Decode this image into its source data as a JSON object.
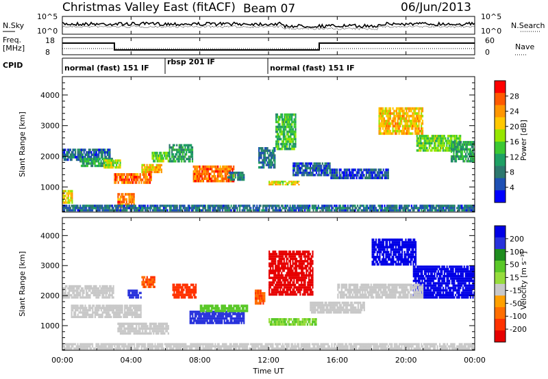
{
  "header": {
    "title_left": "Christmas Valley East (fitACF)",
    "title_mid": "Beam 07",
    "title_right": "06/Jun/2013"
  },
  "panels": {
    "nsky": {
      "label": "N.Sky",
      "ticks": [
        "10^5",
        "10^0"
      ]
    },
    "nsearch": {
      "label": "N.Search",
      "ticks": [
        "10^5",
        "10^0"
      ]
    },
    "freq": {
      "label_line1": "Freq.",
      "label_line2": "[MHz]",
      "ticks": [
        "18",
        "8"
      ]
    },
    "nave": {
      "label": "Nave",
      "ticks": [
        "60",
        "0"
      ]
    },
    "cpid": {
      "label": "CPID",
      "segments": [
        {
          "text": "normal (fast) 151 IF",
          "start_hour": 0,
          "end_hour": 6
        },
        {
          "text": "rbsp 201 IF",
          "start_hour": 6,
          "end_hour": 12
        },
        {
          "text": "normal (fast) 151 IF",
          "start_hour": 12,
          "end_hour": 24
        }
      ]
    }
  },
  "xaxis": {
    "label": "Time UT",
    "ticks": [
      "00:00",
      "04:00",
      "08:00",
      "12:00",
      "16:00",
      "20:00",
      "00:00"
    ]
  },
  "power_colorbar": {
    "label": "Power [dB]",
    "ticks": [
      "28",
      "24",
      "20",
      "16",
      "12",
      "8",
      "4"
    ],
    "colors": [
      "#ff0000",
      "#ff5a00",
      "#ff9600",
      "#ffc800",
      "#96e600",
      "#3cc832",
      "#1ea064",
      "#2d786e",
      "#1e50b4",
      "#0000ff"
    ]
  },
  "velocity_colorbar": {
    "label": "Velocity [m s⁻¹]",
    "ticks": [
      "200",
      "100",
      "50",
      "15",
      "-15",
      "-50",
      "-100",
      "-200"
    ],
    "colors": [
      "#0000e6",
      "#2832dc",
      "#1e8c1e",
      "#5ac828",
      "#96dc3c",
      "#c8c8c8",
      "#ffa000",
      "#ff6e00",
      "#ff3200",
      "#e60000"
    ]
  },
  "chart_data": [
    {
      "type": "heatmap",
      "name": "power",
      "ylabel": "Slant Range [km]",
      "xlabel": "",
      "xlim": [
        0,
        24
      ],
      "ylim": [
        180,
        4600
      ],
      "yticks": [
        1000,
        2000,
        3000,
        4000
      ],
      "regions": [
        {
          "t0": 0.0,
          "t1": 2.8,
          "r0": 1850,
          "r1": 2250,
          "v": 8
        },
        {
          "t0": 1.0,
          "t1": 3.0,
          "r0": 1650,
          "r1": 1950,
          "v": 12
        },
        {
          "t0": 2.4,
          "t1": 3.4,
          "r0": 1600,
          "r1": 1900,
          "v": 18
        },
        {
          "t0": 3.0,
          "t1": 5.2,
          "r0": 1100,
          "r1": 1450,
          "v": 26
        },
        {
          "t0": 4.6,
          "t1": 5.8,
          "r0": 1450,
          "r1": 1750,
          "v": 22
        },
        {
          "t0": 5.2,
          "t1": 6.2,
          "r0": 1800,
          "r1": 2150,
          "v": 16
        },
        {
          "t0": 3.2,
          "t1": 4.2,
          "r0": 300,
          "r1": 800,
          "v": 25
        },
        {
          "t0": 0.0,
          "t1": 0.6,
          "r0": 450,
          "r1": 900,
          "v": 20
        },
        {
          "t0": 6.2,
          "t1": 7.6,
          "r0": 1800,
          "r1": 2400,
          "v": 12
        },
        {
          "t0": 7.6,
          "t1": 10.0,
          "r0": 1150,
          "r1": 1700,
          "v": 26
        },
        {
          "t0": 9.6,
          "t1": 10.6,
          "r0": 1200,
          "r1": 1500,
          "v": 10
        },
        {
          "t0": 11.4,
          "t1": 12.4,
          "r0": 1600,
          "r1": 2300,
          "v": 9
        },
        {
          "t0": 12.0,
          "t1": 13.8,
          "r0": 1050,
          "r1": 1200,
          "v": 20
        },
        {
          "t0": 12.4,
          "t1": 13.6,
          "r0": 2200,
          "r1": 3400,
          "v": 14
        },
        {
          "t0": 13.4,
          "t1": 15.6,
          "r0": 1350,
          "r1": 1800,
          "v": 7
        },
        {
          "t0": 15.6,
          "t1": 19.0,
          "r0": 1250,
          "r1": 1600,
          "v": 6
        },
        {
          "t0": 18.4,
          "t1": 21.0,
          "r0": 2700,
          "r1": 3600,
          "v": 22
        },
        {
          "t0": 20.6,
          "t1": 23.2,
          "r0": 2150,
          "r1": 2700,
          "v": 16
        },
        {
          "t0": 22.6,
          "t1": 24.0,
          "r0": 1800,
          "r1": 2500,
          "v": 12
        },
        {
          "t0": 0.0,
          "t1": 24.0,
          "r0": 200,
          "r1": 420,
          "v": 8
        }
      ]
    },
    {
      "type": "heatmap",
      "name": "velocity",
      "ylabel": "Slant Range [km]",
      "xlabel": "Time UT",
      "xlim": [
        0,
        24
      ],
      "ylim": [
        180,
        4600
      ],
      "yticks": [
        1000,
        2000,
        3000,
        4000
      ],
      "regions": [
        {
          "t0": 0.0,
          "t1": 3.0,
          "r0": 1900,
          "r1": 2350,
          "v": 0
        },
        {
          "t0": 0.5,
          "t1": 4.6,
          "r0": 1250,
          "r1": 1700,
          "v": 0
        },
        {
          "t0": 3.8,
          "t1": 4.6,
          "r0": 1900,
          "r1": 2200,
          "v": 150
        },
        {
          "t0": 4.6,
          "t1": 5.4,
          "r0": 2250,
          "r1": 2650,
          "v": -80
        },
        {
          "t0": 3.2,
          "t1": 6.2,
          "r0": 700,
          "r1": 1100,
          "v": 0
        },
        {
          "t0": 6.4,
          "t1": 7.8,
          "r0": 1900,
          "r1": 2400,
          "v": -120
        },
        {
          "t0": 7.4,
          "t1": 10.6,
          "r0": 1050,
          "r1": 1500,
          "v": 120
        },
        {
          "t0": 8.0,
          "t1": 10.8,
          "r0": 1450,
          "r1": 1700,
          "v": 40
        },
        {
          "t0": 11.2,
          "t1": 11.8,
          "r0": 1700,
          "r1": 2200,
          "v": -80
        },
        {
          "t0": 12.0,
          "t1": 14.6,
          "r0": 2000,
          "r1": 3500,
          "v": -220
        },
        {
          "t0": 12.0,
          "t1": 14.8,
          "r0": 1000,
          "r1": 1250,
          "v": 30
        },
        {
          "t0": 14.4,
          "t1": 17.6,
          "r0": 1400,
          "r1": 1800,
          "v": 0
        },
        {
          "t0": 18.0,
          "t1": 20.6,
          "r0": 3000,
          "r1": 3900,
          "v": 210
        },
        {
          "t0": 20.4,
          "t1": 24.0,
          "r0": 1900,
          "r1": 3000,
          "v": 210
        },
        {
          "t0": 16.0,
          "t1": 21.0,
          "r0": 1900,
          "r1": 2400,
          "v": 0
        },
        {
          "t0": 0.0,
          "t1": 24.0,
          "r0": 200,
          "r1": 420,
          "v": 0
        }
      ]
    }
  ]
}
